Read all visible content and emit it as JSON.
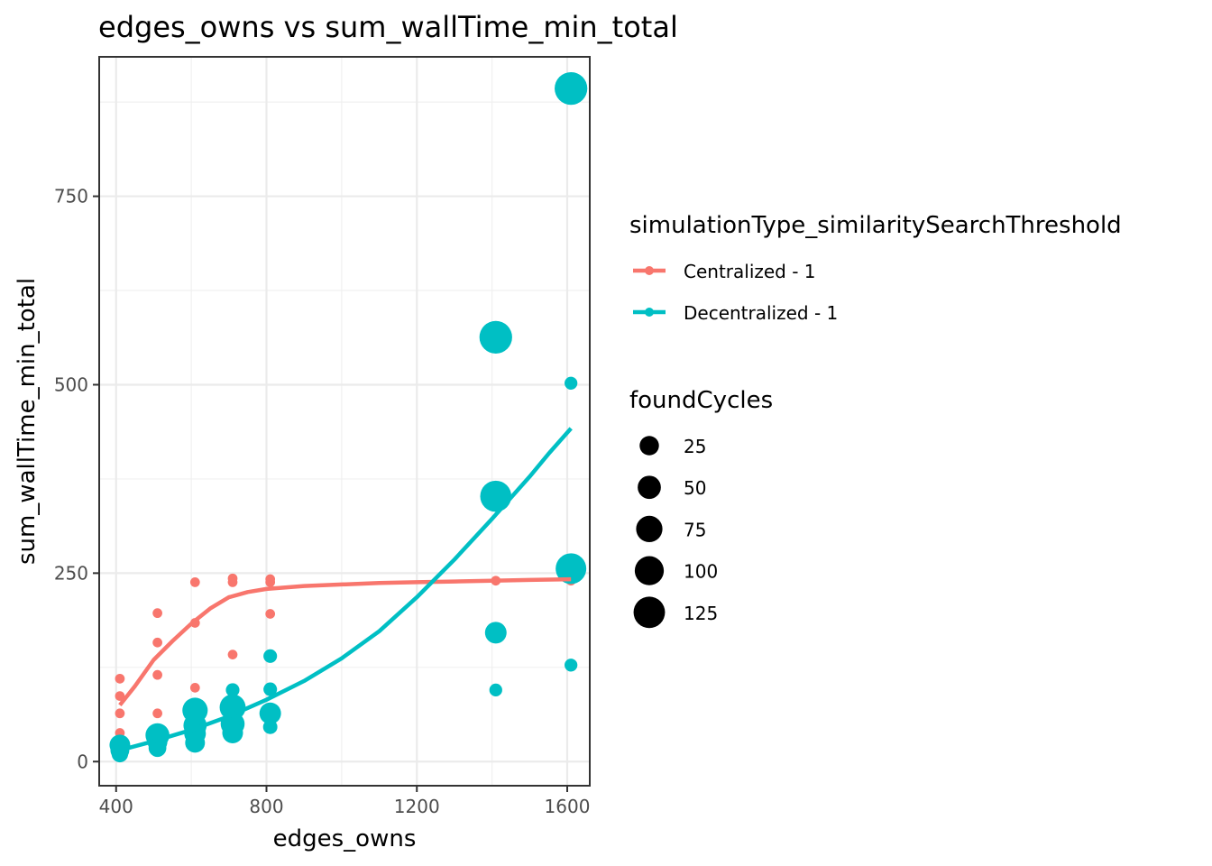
{
  "chart_data": {
    "type": "scatter",
    "title": "edges_owns  vs  sum_wallTime_min_total",
    "xlabel": "edges_owns",
    "ylabel": "sum_wallTime_min_total",
    "xlim": [
      355,
      1660
    ],
    "ylim": [
      -32,
      935
    ],
    "x_ticks": [
      400,
      800,
      1200,
      1600
    ],
    "y_ticks": [
      0,
      250,
      500,
      750
    ],
    "grid": true,
    "legend_position": "right",
    "legend_color_title": "simulationType_similaritySearchThreshold",
    "legend_size_title": "foundCycles",
    "size_legend": [
      25,
      50,
      75,
      100,
      125
    ],
    "series": [
      {
        "name": "Centralized - 1",
        "color": "#F8766D",
        "points": [
          {
            "x": 410,
            "y": 110,
            "size": 2
          },
          {
            "x": 410,
            "y": 87,
            "size": 2
          },
          {
            "x": 410,
            "y": 64,
            "size": 2
          },
          {
            "x": 410,
            "y": 38,
            "size": 2
          },
          {
            "x": 410,
            "y": 18,
            "size": 2
          },
          {
            "x": 510,
            "y": 197,
            "size": 2
          },
          {
            "x": 510,
            "y": 158,
            "size": 2
          },
          {
            "x": 510,
            "y": 115,
            "size": 2
          },
          {
            "x": 510,
            "y": 64,
            "size": 2
          },
          {
            "x": 610,
            "y": 238,
            "size": 2
          },
          {
            "x": 610,
            "y": 184,
            "size": 2
          },
          {
            "x": 610,
            "y": 98,
            "size": 2
          },
          {
            "x": 710,
            "y": 243,
            "size": 2
          },
          {
            "x": 710,
            "y": 238,
            "size": 2
          },
          {
            "x": 710,
            "y": 142,
            "size": 2
          },
          {
            "x": 810,
            "y": 242,
            "size": 2
          },
          {
            "x": 810,
            "y": 238,
            "size": 2
          },
          {
            "x": 810,
            "y": 196,
            "size": 2
          },
          {
            "x": 1410,
            "y": 240,
            "size": 2
          },
          {
            "x": 1610,
            "y": 240,
            "size": 2
          }
        ],
        "smooth": [
          {
            "x": 410,
            "y": 75
          },
          {
            "x": 450,
            "y": 100
          },
          {
            "x": 500,
            "y": 135
          },
          {
            "x": 550,
            "y": 160
          },
          {
            "x": 600,
            "y": 183
          },
          {
            "x": 650,
            "y": 203
          },
          {
            "x": 700,
            "y": 218
          },
          {
            "x": 750,
            "y": 225
          },
          {
            "x": 800,
            "y": 229
          },
          {
            "x": 900,
            "y": 233
          },
          {
            "x": 1000,
            "y": 235
          },
          {
            "x": 1100,
            "y": 237
          },
          {
            "x": 1200,
            "y": 238
          },
          {
            "x": 1300,
            "y": 239
          },
          {
            "x": 1400,
            "y": 240
          },
          {
            "x": 1500,
            "y": 241
          },
          {
            "x": 1610,
            "y": 242
          }
        ]
      },
      {
        "name": "Decentralized - 1",
        "color": "#00BFC4",
        "points": [
          {
            "x": 410,
            "y": 22,
            "size": 40
          },
          {
            "x": 410,
            "y": 15,
            "size": 30
          },
          {
            "x": 410,
            "y": 10,
            "size": 20
          },
          {
            "x": 510,
            "y": 35,
            "size": 60
          },
          {
            "x": 510,
            "y": 26,
            "size": 35
          },
          {
            "x": 510,
            "y": 18,
            "size": 25
          },
          {
            "x": 610,
            "y": 68,
            "size": 70
          },
          {
            "x": 610,
            "y": 48,
            "size": 55
          },
          {
            "x": 610,
            "y": 37,
            "size": 45
          },
          {
            "x": 610,
            "y": 25,
            "size": 35
          },
          {
            "x": 710,
            "y": 95,
            "size": 10
          },
          {
            "x": 710,
            "y": 72,
            "size": 75
          },
          {
            "x": 710,
            "y": 50,
            "size": 60
          },
          {
            "x": 710,
            "y": 38,
            "size": 40
          },
          {
            "x": 810,
            "y": 140,
            "size": 10
          },
          {
            "x": 810,
            "y": 96,
            "size": 10
          },
          {
            "x": 810,
            "y": 64,
            "size": 45
          },
          {
            "x": 810,
            "y": 46,
            "size": 12
          },
          {
            "x": 1410,
            "y": 563,
            "size": 135
          },
          {
            "x": 1410,
            "y": 352,
            "size": 120
          },
          {
            "x": 1410,
            "y": 171,
            "size": 45
          },
          {
            "x": 1410,
            "y": 95,
            "size": 8
          },
          {
            "x": 1610,
            "y": 893,
            "size": 135
          },
          {
            "x": 1610,
            "y": 502,
            "size": 8
          },
          {
            "x": 1610,
            "y": 256,
            "size": 115
          },
          {
            "x": 1610,
            "y": 128,
            "size": 8
          }
        ],
        "smooth": [
          {
            "x": 410,
            "y": 15
          },
          {
            "x": 500,
            "y": 27
          },
          {
            "x": 600,
            "y": 42
          },
          {
            "x": 700,
            "y": 60
          },
          {
            "x": 800,
            "y": 82
          },
          {
            "x": 900,
            "y": 107
          },
          {
            "x": 1000,
            "y": 137
          },
          {
            "x": 1100,
            "y": 173
          },
          {
            "x": 1200,
            "y": 218
          },
          {
            "x": 1300,
            "y": 268
          },
          {
            "x": 1400,
            "y": 322
          },
          {
            "x": 1450,
            "y": 350
          },
          {
            "x": 1500,
            "y": 378
          },
          {
            "x": 1550,
            "y": 408
          },
          {
            "x": 1610,
            "y": 442
          }
        ]
      }
    ]
  }
}
